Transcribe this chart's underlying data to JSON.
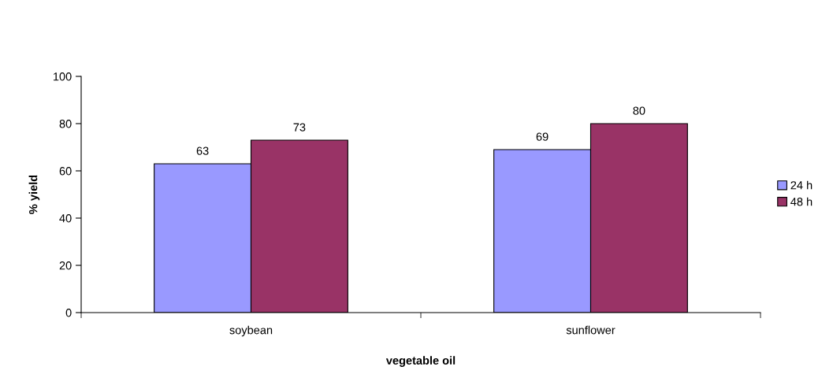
{
  "chart_data": {
    "type": "bar",
    "xlabel": "vegetable oil",
    "ylabel": "% yield",
    "categories": [
      "soybean",
      "sunflower"
    ],
    "series": [
      {
        "name": "24 h",
        "color": "#9999ff",
        "values": [
          63,
          69
        ]
      },
      {
        "name": "48 h",
        "color": "#993366",
        "values": [
          73,
          80
        ]
      }
    ],
    "ylim": [
      0,
      100
    ],
    "yticks": [
      0,
      20,
      40,
      60,
      80,
      100
    ],
    "grid": false,
    "legend": "right",
    "data_labels": true
  }
}
